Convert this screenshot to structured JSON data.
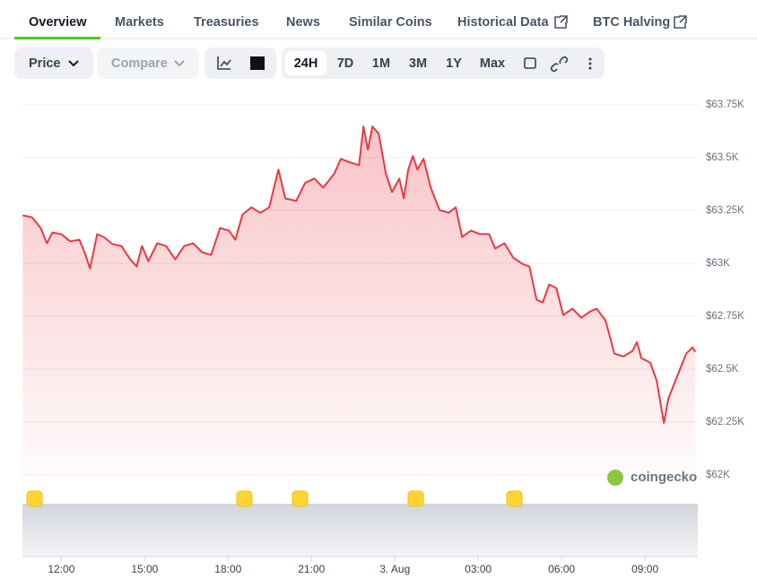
{
  "tabs": [
    "Overview",
    "Markets",
    "Treasuries",
    "News",
    "Similar Coins",
    "Historical Data",
    "BTC Halving"
  ],
  "toolbar": {
    "price": "Price",
    "compare": "Compare",
    "ranges": [
      "24H",
      "7D",
      "1M",
      "3M",
      "1Y",
      "Max"
    ]
  },
  "watermark": "coingecko",
  "chart_data": {
    "type": "line",
    "color": "#ea3943",
    "area": true,
    "grid": true,
    "x": [
      10.61,
      10.94,
      11.26,
      11.48,
      11.68,
      12,
      12.32,
      12.65,
      12.87,
      13.03,
      13.29,
      13.52,
      13.84,
      14.16,
      14.48,
      14.71,
      14.9,
      15.13,
      15.45,
      15.77,
      16.1,
      16.42,
      16.74,
      17.06,
      17.39,
      17.71,
      18.03,
      18.26,
      18.52,
      18.84,
      19.16,
      19.48,
      19.81,
      20.06,
      20.45,
      20.77,
      21.1,
      21.42,
      21.81,
      22.06,
      22.39,
      22.71,
      22.87,
      23.03,
      23.19,
      23.42,
      23.68,
      23.9,
      24.16,
      24.32,
      24.48,
      24.65,
      24.81,
      25.03,
      25.29,
      25.61,
      25.94,
      26.19,
      26.42,
      26.74,
      27.06,
      27.39,
      27.61,
      27.94,
      28.26,
      28.58,
      28.84,
      29.1,
      29.32,
      29.55,
      29.81,
      30.06,
      30.39,
      30.71,
      31.03,
      31.26,
      31.58,
      31.9,
      32.23,
      32.55,
      32.71,
      32.87,
      33.19,
      33.42,
      33.68,
      33.84,
      34.16,
      34.48,
      34.71,
      34.81
    ],
    "values": [
      63227,
      63218,
      63167,
      63095,
      63146,
      63138,
      63104,
      63112,
      63040,
      62976,
      63138,
      63125,
      63091,
      63082,
      63019,
      62985,
      63082,
      63010,
      63095,
      63082,
      63019,
      63082,
      63095,
      63053,
      63040,
      63167,
      63155,
      63112,
      63231,
      63265,
      63239,
      63265,
      63443,
      63307,
      63295,
      63380,
      63401,
      63358,
      63422,
      63494,
      63477,
      63464,
      63647,
      63537,
      63647,
      63613,
      63422,
      63337,
      63401,
      63307,
      63443,
      63507,
      63443,
      63494,
      63358,
      63252,
      63239,
      63265,
      63125,
      63155,
      63138,
      63138,
      63070,
      63095,
      63027,
      62998,
      62985,
      62828,
      62815,
      62900,
      62883,
      62756,
      62786,
      62743,
      62773,
      62786,
      62730,
      62573,
      62560,
      62586,
      62628,
      62552,
      62531,
      62446,
      62246,
      62361,
      62467,
      62573,
      62603,
      62582
    ],
    "xlim": [
      10.6,
      34.9
    ],
    "xticks": [
      {
        "value": 12,
        "label": "12:00"
      },
      {
        "value": 15,
        "label": "15:00"
      },
      {
        "value": 18,
        "label": "18:00"
      },
      {
        "value": 21,
        "label": "21:00"
      },
      {
        "value": 24,
        "label": "3. Aug"
      },
      {
        "value": 27,
        "label": "03:00"
      },
      {
        "value": 30,
        "label": "06:00"
      },
      {
        "value": 33,
        "label": "09:00"
      }
    ],
    "ylim": [
      62000,
      63800
    ],
    "yticks": [
      {
        "value": 62000,
        "label": "$62K"
      },
      {
        "value": 62250,
        "label": "$62.25K"
      },
      {
        "value": 62500,
        "label": "$62.5K"
      },
      {
        "value": 62750,
        "label": "$62.75K"
      },
      {
        "value": 63000,
        "label": "$63K"
      },
      {
        "value": 63250,
        "label": "$63.25K"
      },
      {
        "value": 63500,
        "label": "$63.5K"
      },
      {
        "value": 63750,
        "label": "$63.75K"
      }
    ]
  }
}
